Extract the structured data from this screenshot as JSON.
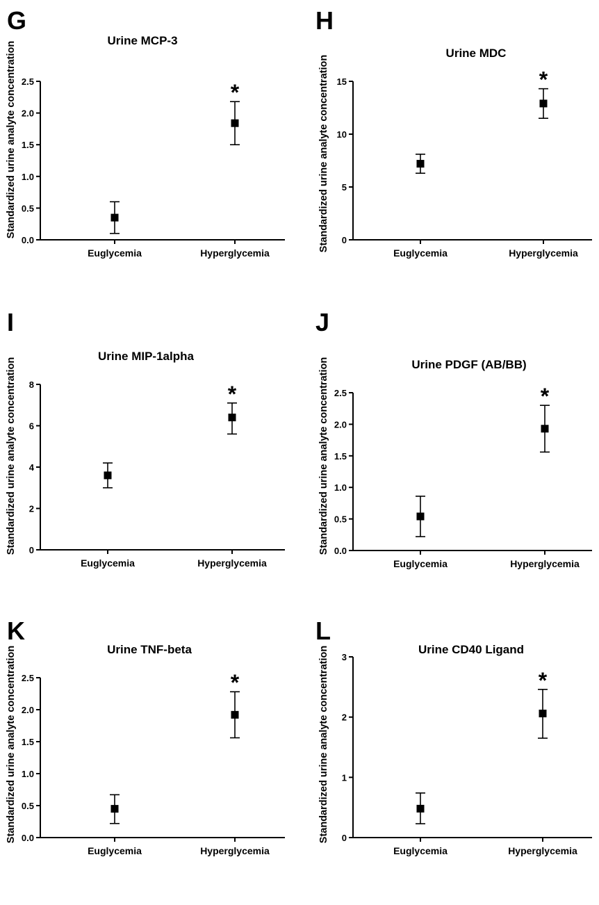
{
  "chart_data": [
    {
      "panel": "G",
      "type": "scatter",
      "title": "Urine MCP-3",
      "ylabel": "Standardized urine analyte concentration",
      "categories": [
        "Euglycemia",
        "Hyperglycemia"
      ],
      "values": [
        0.35,
        1.84
      ],
      "err_low": [
        0.1,
        1.5
      ],
      "err_high": [
        0.6,
        2.18
      ],
      "ylim": [
        0,
        2.5
      ],
      "yticks": [
        "0.0",
        "0.5",
        "1.0",
        "1.5",
        "2.0",
        "2.5"
      ],
      "annotations": [
        "",
        "*"
      ]
    },
    {
      "panel": "H",
      "type": "scatter",
      "title": "Urine MDC",
      "ylabel": "Standardized urine analyte concentration",
      "categories": [
        "Euglycemia",
        "Hyperglycemia"
      ],
      "values": [
        7.2,
        12.9
      ],
      "err_low": [
        6.3,
        11.5
      ],
      "err_high": [
        8.1,
        14.3
      ],
      "ylim": [
        0,
        15
      ],
      "yticks": [
        "0",
        "5",
        "10",
        "15"
      ],
      "annotations": [
        "",
        "*"
      ]
    },
    {
      "panel": "I",
      "type": "scatter",
      "title": "Urine MIP-1alpha",
      "ylabel": "Standardized urine analyte concentration",
      "categories": [
        "Euglycemia",
        "Hyperglycemia"
      ],
      "values": [
        3.6,
        6.4
      ],
      "err_low": [
        3.0,
        5.6
      ],
      "err_high": [
        4.2,
        7.1
      ],
      "ylim": [
        0,
        8
      ],
      "yticks": [
        "0",
        "2",
        "4",
        "6",
        "8"
      ],
      "annotations": [
        "",
        "*"
      ]
    },
    {
      "panel": "J",
      "type": "scatter",
      "title": "Urine PDGF (AB/BB)",
      "ylabel": "Standardized urine analyte concentration",
      "categories": [
        "Euglycemia",
        "Hyperglycemia"
      ],
      "values": [
        0.54,
        1.93
      ],
      "err_low": [
        0.22,
        1.56
      ],
      "err_high": [
        0.86,
        2.3
      ],
      "ylim": [
        0,
        2.5
      ],
      "yticks": [
        "0.0",
        "0.5",
        "1.0",
        "1.5",
        "2.0",
        "2.5"
      ],
      "annotations": [
        "",
        "*"
      ]
    },
    {
      "panel": "K",
      "type": "scatter",
      "title": "Urine TNF-beta",
      "ylabel": "Standardized urine analyte concentration",
      "categories": [
        "Euglycemia",
        "Hyperglycemia"
      ],
      "values": [
        0.45,
        1.92
      ],
      "err_low": [
        0.22,
        1.56
      ],
      "err_high": [
        0.67,
        2.28
      ],
      "ylim": [
        0,
        2.5
      ],
      "yticks": [
        "0.0",
        "0.5",
        "1.0",
        "1.5",
        "2.0",
        "2.5"
      ],
      "annotations": [
        "",
        "*"
      ]
    },
    {
      "panel": "L",
      "type": "scatter",
      "title": "Urine CD40 Ligand",
      "ylabel": "Standardized urine analyte concentration",
      "categories": [
        "Euglycemia",
        "Hyperglycemia"
      ],
      "values": [
        0.48,
        2.06
      ],
      "err_low": [
        0.23,
        1.65
      ],
      "err_high": [
        0.74,
        2.46
      ],
      "ylim": [
        0,
        3
      ],
      "yticks": [
        "0",
        "1",
        "2",
        "3"
      ],
      "annotations": [
        "",
        "*"
      ]
    }
  ]
}
